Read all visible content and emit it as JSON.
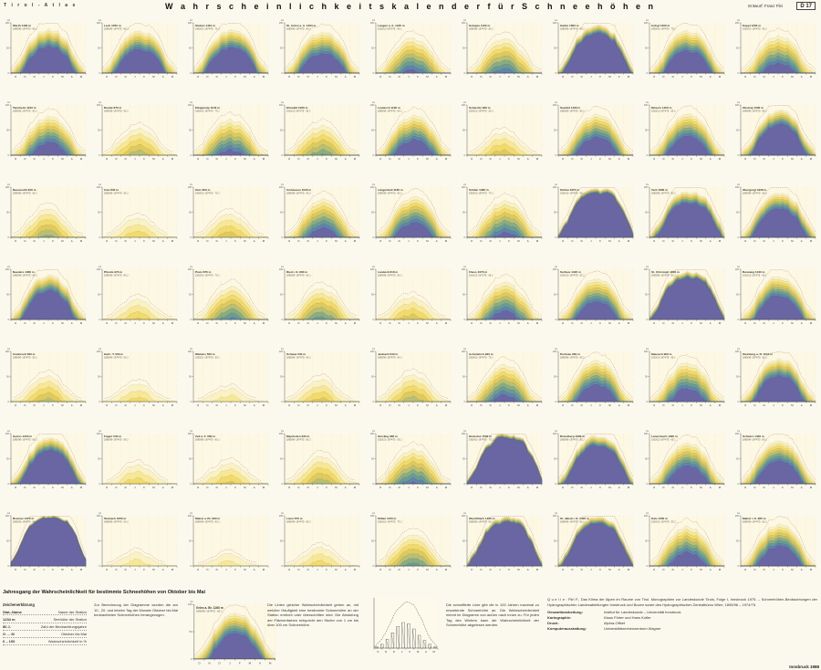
{
  "header": {
    "brand": "T i r o l  -  A t l a s",
    "title": "W a h r s c h e i n l i c h k e i t s k a l e n d e r   f ü r   S c h n e e h ö h e n",
    "credit": "Entwurf:  Franz  Fliri",
    "sheet": "D 17"
  },
  "months": [
    "O",
    "N",
    "D",
    "J",
    "F",
    "M",
    "A",
    "M"
  ],
  "yticks": [
    "0",
    "50",
    "100"
  ],
  "yunit": "cm",
  "band_colors": [
    "#faf1c4",
    "#f7e898",
    "#f2da6c",
    "#ddca60",
    "#b9bf75",
    "#8aac80",
    "#6a9b95",
    "#5f84ac",
    "#6a66a4"
  ],
  "max_line_color": "#b98b7f",
  "chart_data": {
    "type": "area",
    "title": "Wahrscheinlichkeitskalender für Schneehöhen",
    "x_axis": "Oktober bis Mai (Dekaden)",
    "y_axis": "Wahrscheinlichkeit / Schneehöhe",
    "note": "env = Wahrscheinlichkeit (%) je Monatspunkt Okt–Mai fuer Schneedecke, d = Maechtigkeitsfaktor der inneren Stufen",
    "charts": [
      {
        "n": "Warth 1490 m",
        "y": "1895/96–1974/75 · 80 J.",
        "e": [
          4,
          26,
          62,
          82,
          88,
          84,
          66,
          28,
          5
        ],
        "d": 78
      },
      {
        "n": "Lech 1450 m",
        "y": "1895/96–1974/75 · 80 J.",
        "e": [
          3,
          24,
          58,
          78,
          84,
          80,
          62,
          24,
          4
        ],
        "d": 76
      },
      {
        "n": "Stuben 1410 m",
        "y": "1900/01–1974/75 · 75 J.",
        "e": [
          4,
          25,
          60,
          80,
          86,
          82,
          64,
          26,
          5
        ],
        "d": 77
      },
      {
        "n": "St. Anton a. A. 1304 m",
        "y": "1895/96–1974/75 · 80 J.",
        "e": [
          3,
          22,
          56,
          76,
          82,
          78,
          58,
          22,
          3
        ],
        "d": 72
      },
      {
        "n": "Langen a. A. 1220 m",
        "y": "1910/11–1974/75 · 65 J.",
        "e": [
          2,
          16,
          44,
          64,
          70,
          62,
          42,
          14,
          2
        ],
        "d": 58
      },
      {
        "n": "Holzgau 1100 m",
        "y": "1895/96–1974/75 · 80 J.",
        "e": [
          2,
          15,
          42,
          62,
          68,
          60,
          40,
          12,
          2
        ],
        "d": 55
      },
      {
        "n": "Galtür 1583 m",
        "y": "1895/96–1974/75 · 80 J.",
        "e": [
          6,
          32,
          70,
          88,
          94,
          92,
          80,
          44,
          8
        ],
        "d": 90
      },
      {
        "n": "Ischgl 1360 m",
        "y": "1900/01–1974/75 · 75 J.",
        "e": [
          3,
          22,
          56,
          78,
          84,
          80,
          60,
          24,
          4
        ],
        "d": 74
      },
      {
        "n": "Kappl 1260 m",
        "y": "1920/21–1974/75 · 55 J.",
        "e": [
          2,
          18,
          48,
          68,
          75,
          70,
          50,
          18,
          3
        ],
        "d": 64
      },
      {
        "n": "Tannheim 1100 m",
        "y": "1895/96–1974/75 · 80 J.",
        "e": [
          2,
          18,
          50,
          70,
          78,
          72,
          52,
          18,
          3
        ],
        "d": 66
      },
      {
        "n": "Reutte 870 m",
        "y": "1895/96–1974/75 · 80 J.",
        "e": [
          1,
          10,
          32,
          48,
          54,
          44,
          24,
          6,
          0
        ],
        "d": 42
      },
      {
        "n": "Elbigenalp 1040 m",
        "y": "1900/01–1974/75 · 75 J.",
        "e": [
          2,
          16,
          46,
          66,
          72,
          66,
          46,
          14,
          2
        ],
        "d": 60
      },
      {
        "n": "Ehrwald 1000 m",
        "y": "1910/11–1974/75 · 65 J.",
        "e": [
          1,
          12,
          36,
          54,
          60,
          52,
          30,
          8,
          1
        ],
        "d": 48
      },
      {
        "n": "Leutasch 1130 m",
        "y": "1895/96–1974/75 · 80 J.",
        "e": [
          2,
          18,
          50,
          72,
          80,
          74,
          54,
          20,
          3
        ],
        "d": 68
      },
      {
        "n": "Scharnitz 960 m",
        "y": "1920/21–1974/75 · 55 J.",
        "e": [
          1,
          8,
          26,
          42,
          46,
          36,
          18,
          4,
          0
        ],
        "d": 38
      },
      {
        "n": "Seefeld 1180 m",
        "y": "1895/96–1974/75 · 80 J.",
        "e": [
          2,
          19,
          52,
          74,
          82,
          76,
          56,
          20,
          3
        ],
        "d": 70
      },
      {
        "n": "Mösern 1250 m",
        "y": "1910/11–1974/75 · 65 J.",
        "e": [
          3,
          20,
          52,
          74,
          81,
          77,
          58,
          22,
          3
        ],
        "d": 71
      },
      {
        "n": "Obsteig 1000 m",
        "y": "1895/96–1974/75 · 80 J.",
        "e": [
          4,
          24,
          60,
          82,
          88,
          86,
          68,
          30,
          5
        ],
        "d": 82
      },
      {
        "n": "Nassereith 840 m",
        "y": "1895/96–1974/75 · 80 J.",
        "e": [
          1,
          10,
          32,
          50,
          55,
          46,
          26,
          6,
          1
        ],
        "d": 44
      },
      {
        "n": "Imst 830 m",
        "y": "1895/96–1974/75 · 80 J.",
        "e": [
          0,
          6,
          20,
          34,
          38,
          28,
          12,
          2,
          0
        ],
        "d": 30
      },
      {
        "n": "Oetz 820 m",
        "y": "1900/01–1974/75 · 75 J.",
        "e": [
          1,
          8,
          26,
          42,
          47,
          38,
          18,
          4,
          0
        ],
        "d": 36
      },
      {
        "n": "Umhausen 1030 m",
        "y": "1895/96–1974/75 · 80 J.",
        "e": [
          2,
          16,
          46,
          68,
          76,
          70,
          48,
          16,
          2
        ],
        "d": 62
      },
      {
        "n": "Längenfeld 1180 m",
        "y": "1895/96–1974/75 · 80 J.",
        "e": [
          2,
          18,
          50,
          72,
          80,
          76,
          54,
          20,
          3
        ],
        "d": 66
      },
      {
        "n": "Sölden 1380 m",
        "y": "1900/01–1974/75 · 75 J.",
        "e": [
          2,
          16,
          44,
          66,
          74,
          68,
          48,
          16,
          2
        ],
        "d": 58
      },
      {
        "n": "Kühtai 1970 m",
        "y": "1930/31–1974/75 · 45 J.",
        "e": [
          7,
          36,
          76,
          92,
          97,
          96,
          88,
          56,
          12
        ],
        "d": 95
      },
      {
        "n": "Vent 1890 m",
        "y": "1895/96–1974/75 · 80 J.",
        "e": [
          5,
          28,
          64,
          84,
          90,
          90,
          80,
          46,
          9
        ],
        "d": 86
      },
      {
        "n": "Obergurgl 1938 m",
        "y": "1895/96–1974/75 · 80 J.",
        "e": [
          4,
          24,
          58,
          80,
          87,
          85,
          70,
          34,
          6
        ],
        "d": 80
      },
      {
        "n": "Nauders 1360 m",
        "y": "1895/96–1974/75 · 80 J.",
        "e": [
          3,
          24,
          60,
          82,
          88,
          84,
          64,
          26,
          4
        ],
        "d": 80
      },
      {
        "n": "Pfunds 970 m",
        "y": "1895/96–1974/75 · 80 J.",
        "e": [
          0,
          6,
          22,
          36,
          40,
          30,
          14,
          3,
          0
        ],
        "d": 32
      },
      {
        "n": "Prutz 870 m",
        "y": "1900/01–1974/75 · 75 J.",
        "e": [
          1,
          12,
          38,
          58,
          66,
          58,
          36,
          10,
          1
        ],
        "d": 52
      },
      {
        "n": "Ried i. O. 880 m",
        "y": "1895/96–1974/75 · 80 J.",
        "e": [
          1,
          12,
          36,
          56,
          62,
          54,
          32,
          8,
          1
        ],
        "d": 50
      },
      {
        "n": "Landeck 816 m",
        "y": "1895/96–1974/75 · 80 J.",
        "e": [
          1,
          8,
          26,
          42,
          46,
          36,
          16,
          4,
          0
        ],
        "d": 38
      },
      {
        "n": "Fliess 1070 m",
        "y": "1910/11–1974/75 · 65 J.",
        "e": [
          2,
          16,
          46,
          68,
          74,
          68,
          48,
          16,
          2
        ],
        "d": 62
      },
      {
        "n": "Serfaus 1420 m",
        "y": "1920/21–1974/75 · 55 J.",
        "e": [
          3,
          20,
          52,
          74,
          80,
          76,
          56,
          20,
          3
        ],
        "d": 70
      },
      {
        "n": "St. Christoph 1800 m",
        "y": "1895/96–1974/75 · 80 J.",
        "e": [
          6,
          34,
          74,
          90,
          96,
          94,
          84,
          50,
          10
        ],
        "d": 93
      },
      {
        "n": "Berwang 1340 m",
        "y": "1910/11–1974/75 · 65 J.",
        "e": [
          3,
          22,
          56,
          78,
          85,
          80,
          60,
          24,
          4
        ],
        "d": 75
      },
      {
        "n": "Innsbruck 580 m",
        "y": "1895/96–1974/75 · 80 J.",
        "e": [
          1,
          10,
          30,
          46,
          52,
          42,
          22,
          5,
          0
        ],
        "d": 40
      },
      {
        "n": "Hall i. T. 560 m",
        "y": "1895/96–1974/75 · 80 J.",
        "e": [
          0,
          6,
          20,
          32,
          36,
          26,
          10,
          2,
          0
        ],
        "d": 28
      },
      {
        "n": "Wattens 560 m",
        "y": "1920/21–1974/75 · 55 J.",
        "e": [
          0,
          4,
          14,
          24,
          27,
          18,
          6,
          1,
          0
        ],
        "d": 22
      },
      {
        "n": "Schwaz 540 m",
        "y": "1895/96–1974/75 · 80 J.",
        "e": [
          1,
          8,
          24,
          40,
          44,
          34,
          14,
          3,
          0
        ],
        "d": 34
      },
      {
        "n": "Jenbach 530 m",
        "y": "1895/96–1974/75 · 80 J.",
        "e": [
          1,
          10,
          30,
          48,
          54,
          46,
          24,
          6,
          1
        ],
        "d": 42
      },
      {
        "n": "Achenkirch 930 m",
        "y": "1900/01–1974/75 · 75 J.",
        "e": [
          2,
          16,
          44,
          66,
          74,
          68,
          46,
          14,
          2
        ],
        "d": 60
      },
      {
        "n": "Pertisau 950 m",
        "y": "1895/96–1974/75 · 80 J.",
        "e": [
          2,
          18,
          50,
          74,
          82,
          78,
          56,
          20,
          3
        ],
        "d": 68
      },
      {
        "n": "Maurach 960 m",
        "y": "1910/11–1974/75 · 65 J.",
        "e": [
          2,
          17,
          48,
          70,
          78,
          72,
          52,
          18,
          3
        ],
        "d": 66
      },
      {
        "n": "Steinberg a. R. 1010 m",
        "y": "1895/96–1974/75 · 80 J.",
        "e": [
          3,
          22,
          56,
          78,
          86,
          82,
          62,
          26,
          4
        ],
        "d": 78
      },
      {
        "n": "Gerlos 1250 m",
        "y": "1895/96–1974/75 · 80 J.",
        "e": [
          4,
          26,
          62,
          84,
          90,
          88,
          70,
          32,
          5
        ],
        "d": 84
      },
      {
        "n": "Fügen 540 m",
        "y": "1895/96–1974/75 · 80 J.",
        "e": [
          0,
          6,
          20,
          34,
          38,
          28,
          12,
          2,
          0
        ],
        "d": 30
      },
      {
        "n": "Zell a. Z. 580 m",
        "y": "1895/96–1974/75 · 80 J.",
        "e": [
          1,
          8,
          24,
          38,
          42,
          32,
          14,
          3,
          0
        ],
        "d": 34
      },
      {
        "n": "Mayrhofen 630 m",
        "y": "1895/96–1974/75 · 80 J.",
        "e": [
          1,
          10,
          30,
          48,
          54,
          44,
          22,
          5,
          0
        ],
        "d": 40
      },
      {
        "n": "Ginzling 980 m",
        "y": "1920/21–1974/75 · 55 J.",
        "e": [
          2,
          14,
          42,
          62,
          70,
          64,
          42,
          12,
          2
        ],
        "d": 56
      },
      {
        "n": "Hintertux 1500 m",
        "y": "1900/01–1974/75 · 75 J.",
        "e": [
          7,
          36,
          76,
          93,
          98,
          97,
          90,
          58,
          13
        ],
        "d": 96
      },
      {
        "n": "Brandberg 1080 m",
        "y": "1895/96–1974/75 · 80 J.",
        "e": [
          5,
          30,
          68,
          88,
          94,
          92,
          80,
          46,
          8
        ],
        "d": 88
      },
      {
        "n": "Lanersbach 1300 m",
        "y": "1910/11–1974/75 · 65 J.",
        "e": [
          3,
          20,
          52,
          74,
          81,
          77,
          58,
          22,
          3
        ],
        "d": 70
      },
      {
        "n": "Schmirn 1400 m",
        "y": "1895/96–1974/75 · 80 J.",
        "e": [
          3,
          22,
          56,
          78,
          85,
          81,
          62,
          26,
          4
        ],
        "d": 74
      },
      {
        "n": "Brenner 1370 m",
        "y": "1895/96–1974/75 · 80 J.",
        "e": [
          10,
          44,
          82,
          95,
          99,
          98,
          92,
          62,
          16
        ],
        "d": 98
      },
      {
        "n": "Steinach 1050 m",
        "y": "1895/96–1974/75 · 80 J.",
        "e": [
          0,
          4,
          14,
          24,
          27,
          18,
          6,
          1,
          0
        ],
        "d": 22
      },
      {
        "n": "Matrei a. Br. 990 m",
        "y": "1895/96–1974/75 · 80 J.",
        "e": [
          0,
          4,
          12,
          22,
          24,
          16,
          5,
          1,
          0
        ],
        "d": 20
      },
      {
        "n": "Lienz 670 m",
        "y": "1895/96–1974/75 · 80 J.",
        "e": [
          0,
          6,
          20,
          34,
          38,
          28,
          12,
          2,
          0
        ],
        "d": 28
      },
      {
        "n": "Sillian 1100 m",
        "y": "1900/01–1974/75 · 75 J.",
        "e": [
          1,
          12,
          36,
          56,
          62,
          56,
          34,
          9,
          1
        ],
        "d": 50
      },
      {
        "n": "Obertilliach 1450 m",
        "y": "1895/96–1974/75 · 80 J.",
        "e": [
          6,
          34,
          74,
          92,
          97,
          96,
          86,
          52,
          10
        ],
        "d": 94
      },
      {
        "n": "St. Jakob i. D. 1400 m",
        "y": "1895/96–1974/75 · 80 J.",
        "e": [
          6,
          32,
          72,
          90,
          96,
          94,
          84,
          48,
          9
        ],
        "d": 92
      },
      {
        "n": "Kals 1350 m",
        "y": "1920/21–1974/75 · 55 J.",
        "e": [
          2,
          18,
          50,
          72,
          80,
          74,
          54,
          20,
          3
        ],
        "d": 66
      },
      {
        "n": "Matrei i. O. 980 m",
        "y": "1895/96–1974/75 · 80 J.",
        "e": [
          3,
          20,
          52,
          76,
          83,
          79,
          58,
          22,
          3
        ],
        "d": 72
      }
    ]
  },
  "footer": {
    "heading": "Jahresgang der Wahrscheinlichkeit für bestimmte Schneehöhen von Oktober bis Mai",
    "legend": {
      "title": "Zeichenerklärung",
      "rows": [
        [
          "Stat.-Name",
          "Name der Station"
        ],
        [
          "1234 m",
          "Seehöhe der Station"
        ],
        [
          "80 J.",
          "Zahl der Beobachtungsjahre"
        ],
        [
          "O … M",
          "Oktober bis Mai"
        ],
        [
          "0 – 100",
          "Wahrscheinlichkeit in %"
        ]
      ]
    },
    "para1": "Zur Berechnung der Diagramme wurden die am 10., 20. und letzten Tag der Monate Oktober bis Mai beobachteten Schneehöhen herangezogen.",
    "para2": "Die Linien gleicher Wahrscheinlichkeit geben an, mit welcher Häufigkeit eine bestimmte Schneehöhe an der Station erreicht oder überschritten wird. Die Abstufung der Flächenfarben entspricht den Stufen von 1 cm bis über 100 cm Schneehöhe.",
    "para3": "Die schraffierte Linie gibt die in 100 Jahren maximal zu erwartende Schneehöhe an. Die Wahrscheinlichkeit nimmt im Diagramm von außen nach innen zu. Für jeden Tag des Winters kann die Wahrscheinlichkeit der Schneehöhe abgelesen werden.",
    "example1": {
      "n": "Gries a. Br. 1160 m",
      "y": "1895/96–1974/75 · 80 J.",
      "e": [
        2,
        20,
        54,
        76,
        84,
        80,
        58,
        22,
        3
      ],
      "d": 76
    },
    "example2": {
      "env": [
        2,
        18,
        48,
        78,
        92,
        86,
        58,
        20,
        2
      ],
      "bars": [
        1,
        3,
        7,
        12,
        17,
        20,
        19,
        15,
        10,
        6,
        3,
        1
      ]
    },
    "credits": {
      "quelle": "Q u e l l e :   Fliri F., Das Klima der Alpen im Raume von Tirol. Monographien zur Landeskunde Tirols, Folge I, Innsbruck 1975. – Schneehöhen-Beobachtungen der Hydrographischen Landesabteilungen Innsbruck und Bozen sowie des Hydrographischen Zentralbüros Wien, 1895/96 – 1974/75.",
      "pairs": [
        [
          "Gesamtbearbeitung:",
          "Institut für Landeskunde – Universität Innsbruck"
        ],
        [
          "Kartographie:",
          "Klaus Förter und Hans Kofler"
        ],
        [
          "Druck:",
          "Alpina-Offset"
        ],
        [
          "Komputerausstattung:",
          "Universitätsrechenzentrum Wagner"
        ]
      ],
      "year": "Innsbruck  1988"
    }
  }
}
